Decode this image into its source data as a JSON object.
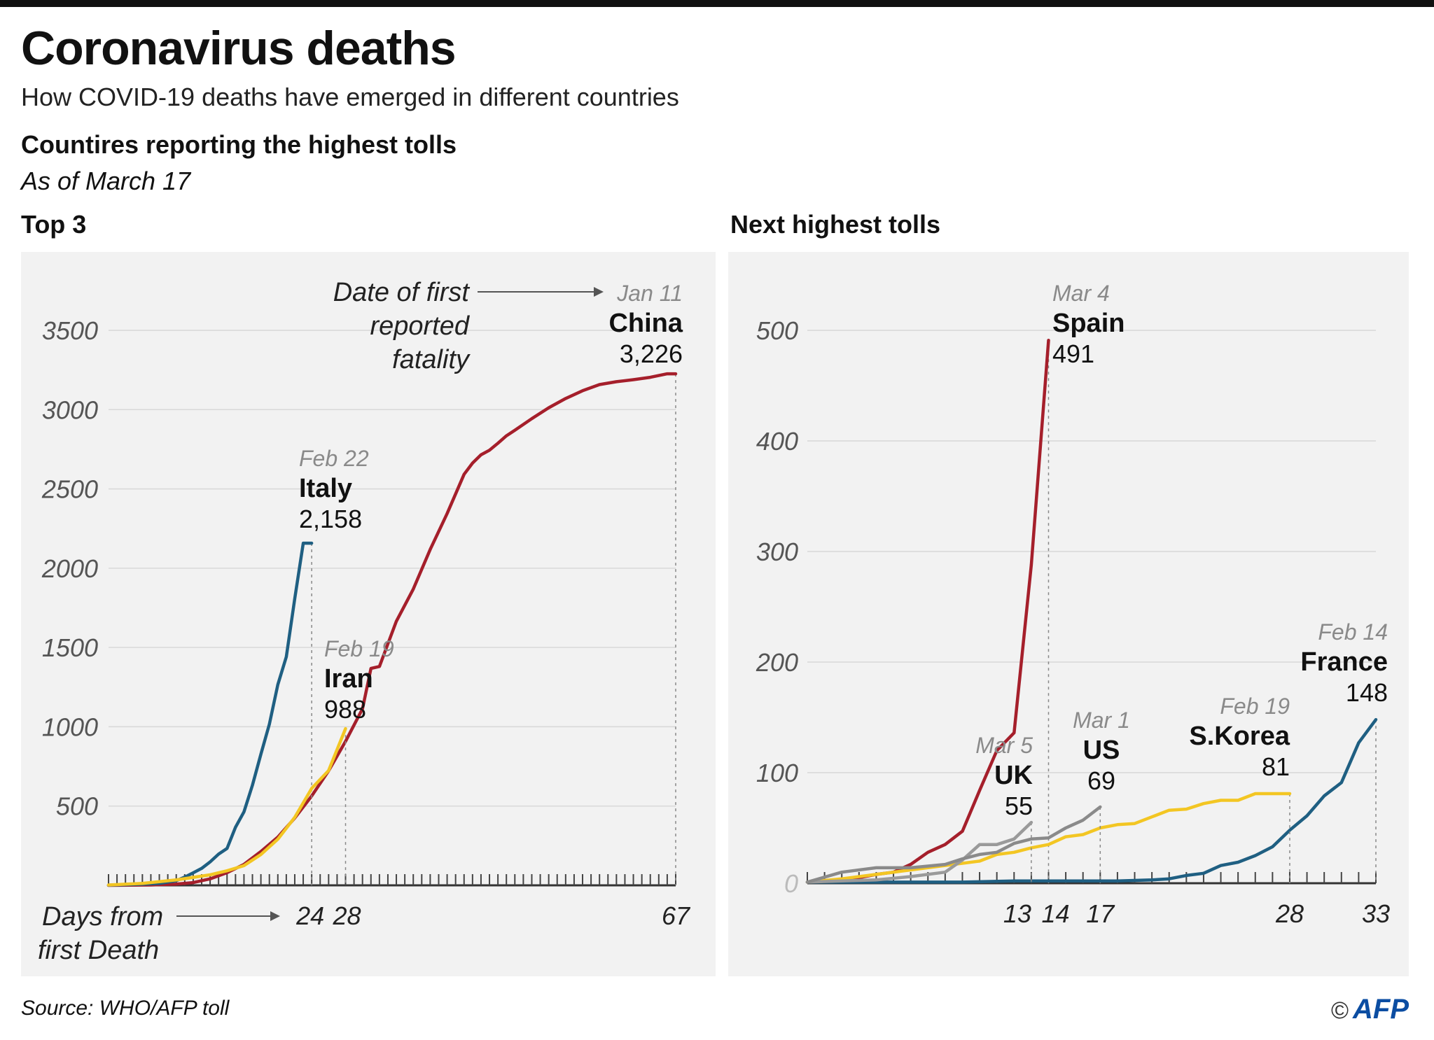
{
  "header": {
    "title": "Coronavirus deaths",
    "subtitle": "How COVID-19 deaths have emerged in different countries",
    "section": "Countires reporting the highest tolls",
    "as_of": "As of March 17"
  },
  "panels": {
    "left_title": "Top 3",
    "right_title": "Next highest tolls"
  },
  "annotations": {
    "first_fatality": [
      "Date of first",
      "reported",
      "fatality"
    ],
    "days_from": [
      "Days from",
      "first Death"
    ]
  },
  "footer": {
    "source": "Source: WHO/AFP toll",
    "logo_copy": "©",
    "logo": "AFP"
  },
  "colors": {
    "China": "#a51f2b",
    "Italy": "#1f5f82",
    "Iran": "#f3c623",
    "Spain": "#a51f2b",
    "France": "#1f5f82",
    "S.Korea": "#f3c623",
    "UK": "#9a9a9a",
    "US": "#8a8a8a",
    "panel_bg": "#f2f2f2"
  },
  "chart_data": [
    {
      "type": "line",
      "title": "Top 3",
      "xlabel": "Days from first Death",
      "ylabel": "",
      "xlim": [
        0,
        67
      ],
      "ylim": [
        0,
        3500
      ],
      "yticks": [
        500,
        1000,
        1500,
        2000,
        2500,
        3000,
        3500
      ],
      "xticks_labeled": [
        24,
        28,
        67
      ],
      "series": [
        {
          "name": "China",
          "first_death": "Jan 11",
          "final": "3,226",
          "x": [
            0,
            5,
            8,
            10,
            12,
            14,
            16,
            18,
            20,
            22,
            24,
            26,
            28,
            30,
            31,
            32,
            33,
            34,
            36,
            38,
            40,
            42,
            43,
            44,
            45,
            46,
            47,
            48,
            50,
            52,
            54,
            56,
            58,
            60,
            62,
            64,
            66,
            67
          ],
          "y": [
            0,
            2,
            8,
            17,
            41,
            80,
            132,
            213,
            304,
            425,
            563,
            722,
            908,
            1113,
            1368,
            1380,
            1523,
            1665,
            1868,
            2118,
            2345,
            2592,
            2663,
            2715,
            2744,
            2788,
            2835,
            2870,
            2943,
            3012,
            3070,
            3119,
            3158,
            3176,
            3189,
            3204,
            3226,
            3226
          ]
        },
        {
          "name": "Italy",
          "first_death": "Feb 22",
          "final": "2,158",
          "x": [
            0,
            4,
            6,
            8,
            9,
            10,
            11,
            12,
            13,
            14,
            15,
            16,
            17,
            18,
            19,
            20,
            21,
            22,
            23,
            24
          ],
          "y": [
            1,
            7,
            12,
            29,
            52,
            79,
            107,
            148,
            197,
            233,
            366,
            463,
            631,
            827,
            1016,
            1266,
            1441,
            1809,
            2158,
            2158
          ]
        },
        {
          "name": "Iran",
          "first_death": "Feb 19",
          "final": "988",
          "x": [
            0,
            4,
            8,
            12,
            14,
            16,
            18,
            20,
            22,
            24,
            26,
            28
          ],
          "y": [
            2,
            12,
            34,
            66,
            92,
            124,
            194,
            291,
            429,
            611,
            724,
            988
          ]
        }
      ]
    },
    {
      "type": "line",
      "title": "Next highest tolls",
      "xlabel": "",
      "ylabel": "",
      "xlim": [
        0,
        33
      ],
      "ylim": [
        0,
        500
      ],
      "yticks": [
        0,
        100,
        200,
        300,
        400,
        500
      ],
      "xticks_labeled": [
        13,
        14,
        17,
        28,
        33
      ],
      "series": [
        {
          "name": "Spain",
          "first_death": "Mar 4",
          "final": "491",
          "x": [
            0,
            1,
            2,
            3,
            4,
            5,
            6,
            7,
            8,
            9,
            10,
            11,
            12,
            13,
            14
          ],
          "y": [
            1,
            2,
            3,
            5,
            8,
            10,
            17,
            28,
            35,
            47,
            84,
            120,
            136,
            288,
            491
          ]
        },
        {
          "name": "France",
          "first_death": "Feb 14",
          "final": "148",
          "x": [
            0,
            3,
            6,
            9,
            12,
            15,
            18,
            20,
            21,
            22,
            23,
            24,
            25,
            26,
            27,
            28,
            29,
            30,
            31,
            32,
            33
          ],
          "y": [
            1,
            1,
            1,
            1,
            2,
            2,
            2,
            3,
            4,
            7,
            9,
            16,
            19,
            25,
            33,
            48,
            61,
            79,
            91,
            127,
            148
          ]
        },
        {
          "name": "S.Korea",
          "first_death": "Feb 19",
          "final": "81",
          "x": [
            0,
            2,
            4,
            6,
            8,
            10,
            11,
            12,
            13,
            14,
            15,
            16,
            17,
            18,
            19,
            20,
            21,
            22,
            23,
            24,
            25,
            26,
            27,
            28
          ],
          "y": [
            1,
            4,
            8,
            12,
            16,
            20,
            26,
            28,
            32,
            35,
            42,
            44,
            50,
            53,
            54,
            60,
            66,
            67,
            72,
            75,
            75,
            81,
            81,
            81
          ]
        },
        {
          "name": "UK",
          "first_death": "Mar 5",
          "final": "55",
          "x": [
            0,
            2,
            4,
            6,
            8,
            9,
            10,
            11,
            12,
            13
          ],
          "y": [
            1,
            2,
            3,
            6,
            10,
            21,
            35,
            35,
            40,
            55
          ]
        },
        {
          "name": "US",
          "first_death": "Mar 1",
          "final": "69",
          "x": [
            0,
            2,
            4,
            6,
            8,
            9,
            10,
            11,
            12,
            13,
            14,
            15,
            16,
            17
          ],
          "y": [
            1,
            10,
            14,
            14,
            17,
            22,
            26,
            28,
            36,
            40,
            41,
            50,
            57,
            69
          ]
        }
      ]
    }
  ]
}
